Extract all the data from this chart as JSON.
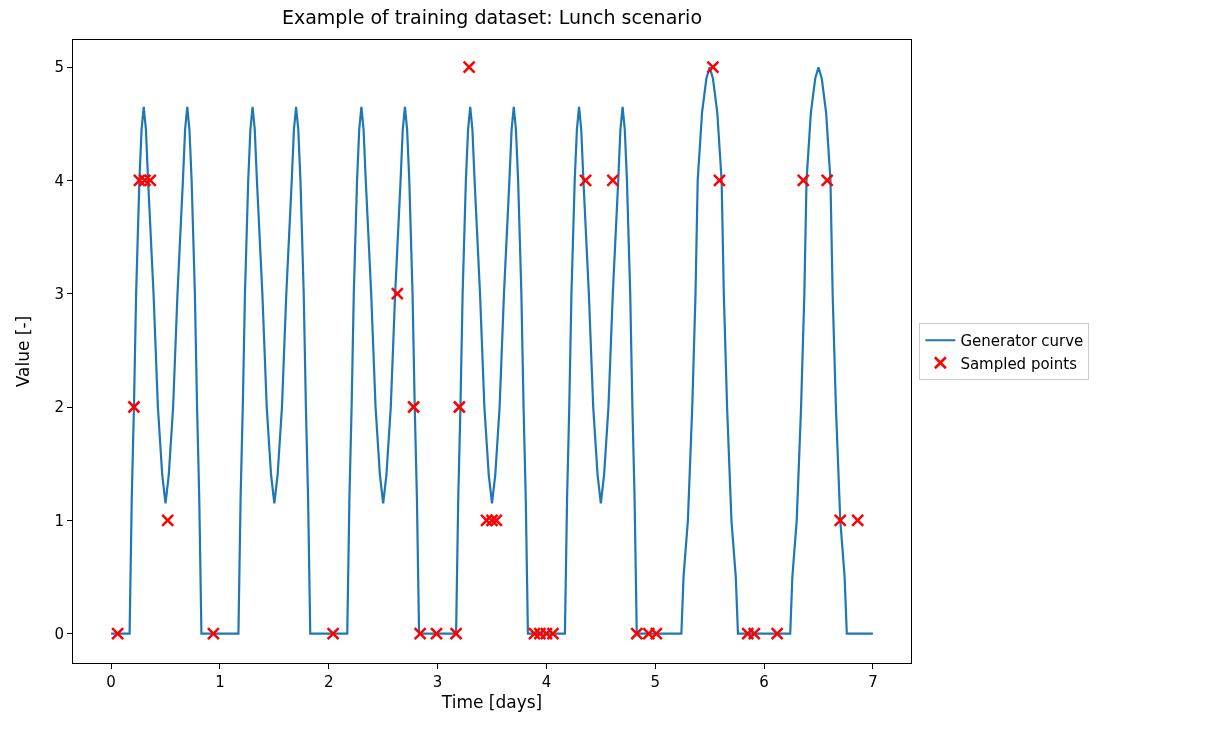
{
  "chart_data": {
    "type": "line",
    "title": "Example of training dataset: Lunch scenario",
    "xlabel": "Time [days]",
    "ylabel": "Value [-]",
    "xlim": [
      -0.35,
      7.35
    ],
    "ylim": [
      -0.26,
      5.24
    ],
    "xticks": [
      0,
      1,
      2,
      3,
      4,
      5,
      6,
      7
    ],
    "yticks": [
      0,
      1,
      2,
      3,
      4,
      5
    ],
    "grid": false,
    "legend": "right",
    "series": [
      {
        "name": "Generator curve",
        "color": "#1f77b4",
        "marker": "none",
        "line_style": "solid",
        "x": [
          0,
          0.17,
          0.19,
          0.21,
          0.23,
          0.26,
          0.28,
          0.3,
          0.32,
          0.34,
          0.39,
          0.43,
          0.47,
          0.5,
          0.53,
          0.57,
          0.61,
          0.66,
          0.68,
          0.7,
          0.72,
          0.74,
          0.77,
          0.79,
          0.81,
          0.83,
          1.17,
          1.19,
          1.21,
          1.23,
          1.26,
          1.28,
          1.3,
          1.32,
          1.34,
          1.39,
          1.43,
          1.47,
          1.5,
          1.53,
          1.57,
          1.61,
          1.66,
          1.68,
          1.7,
          1.72,
          1.74,
          1.77,
          1.79,
          1.81,
          1.83,
          2.17,
          2.19,
          2.21,
          2.23,
          2.26,
          2.28,
          2.3,
          2.32,
          2.34,
          2.39,
          2.43,
          2.47,
          2.5,
          2.53,
          2.57,
          2.61,
          2.66,
          2.68,
          2.7,
          2.72,
          2.74,
          2.77,
          2.79,
          2.81,
          2.83,
          3.17,
          3.19,
          3.21,
          3.23,
          3.26,
          3.28,
          3.3,
          3.32,
          3.34,
          3.39,
          3.43,
          3.47,
          3.5,
          3.53,
          3.57,
          3.61,
          3.66,
          3.68,
          3.7,
          3.72,
          3.74,
          3.77,
          3.79,
          3.81,
          3.83,
          4.17,
          4.19,
          4.21,
          4.23,
          4.26,
          4.28,
          4.3,
          4.32,
          4.34,
          4.39,
          4.43,
          4.47,
          4.5,
          4.53,
          4.57,
          4.61,
          4.66,
          4.68,
          4.7,
          4.72,
          4.74,
          4.77,
          4.79,
          4.81,
          4.83,
          5.24,
          5.26,
          5.3,
          5.34,
          5.37,
          5.39,
          5.43,
          5.47,
          5.5,
          5.53,
          5.57,
          5.61,
          5.63,
          5.66,
          5.7,
          5.74,
          5.76,
          6.24,
          6.26,
          6.3,
          6.34,
          6.37,
          6.39,
          6.43,
          6.47,
          6.5,
          6.53,
          6.57,
          6.61,
          6.63,
          6.66,
          6.7,
          6.74,
          6.76,
          7
        ],
        "values": [
          0,
          0,
          1.2,
          2,
          3,
          4,
          4.45,
          4.65,
          4.45,
          4,
          3,
          2,
          1.4,
          1.15,
          1.4,
          2,
          3,
          4,
          4.45,
          4.65,
          4.45,
          4,
          3,
          2,
          1.2,
          0,
          0,
          1.2,
          2,
          3,
          4,
          4.45,
          4.65,
          4.45,
          4,
          3,
          2,
          1.4,
          1.15,
          1.4,
          2,
          3,
          4,
          4.45,
          4.65,
          4.45,
          4,
          3,
          2,
          1.2,
          0,
          0,
          1.2,
          2,
          3,
          4,
          4.45,
          4.65,
          4.45,
          4,
          3,
          2,
          1.4,
          1.15,
          1.4,
          2,
          3,
          4,
          4.45,
          4.65,
          4.45,
          4,
          3,
          2,
          1.2,
          0,
          0,
          1.2,
          2,
          3,
          4,
          4.45,
          4.65,
          4.45,
          4,
          3,
          2,
          1.4,
          1.15,
          1.4,
          2,
          3,
          4,
          4.45,
          4.65,
          4.45,
          4,
          3,
          2,
          1.2,
          0,
          0,
          1.2,
          2,
          3,
          4,
          4.45,
          4.65,
          4.45,
          4,
          3,
          2,
          1.4,
          1.15,
          1.4,
          2,
          3,
          4,
          4.45,
          4.65,
          4.45,
          4,
          3,
          2,
          1.2,
          0,
          0,
          0.5,
          1,
          2,
          3,
          4,
          4.6,
          4.9,
          5,
          4.9,
          4.6,
          4,
          3,
          2,
          1,
          0.5,
          0,
          0,
          0.5,
          1,
          2,
          3,
          4,
          4.6,
          4.9,
          5,
          4.9,
          4.6,
          4,
          3,
          2,
          1,
          0.5,
          0,
          0
        ]
      },
      {
        "name": "Sampled points",
        "type": "scatter",
        "color": "#ff0000",
        "marker": "cross",
        "x": [
          0.06,
          0.94,
          2.04,
          2.84,
          2.99,
          3.17,
          3.89,
          3.94,
          4.0,
          4.06,
          4.83,
          4.94,
          5.01,
          5.85,
          5.91,
          6.12,
          0.52,
          3.45,
          3.5,
          3.54,
          6.7,
          6.86,
          0.21,
          2.78,
          3.2,
          2.63,
          0.26,
          0.31,
          0.36,
          4.36,
          4.61,
          5.59,
          6.36,
          6.58,
          3.29,
          5.53
        ],
        "values": [
          0,
          0,
          0,
          0,
          0,
          0,
          0,
          0,
          0,
          0,
          0,
          0,
          0,
          0,
          0,
          0,
          1,
          1,
          1,
          1,
          1,
          1,
          2,
          2,
          2,
          3,
          4,
          4,
          4,
          4,
          4,
          4,
          4,
          4,
          5,
          5
        ]
      }
    ]
  }
}
